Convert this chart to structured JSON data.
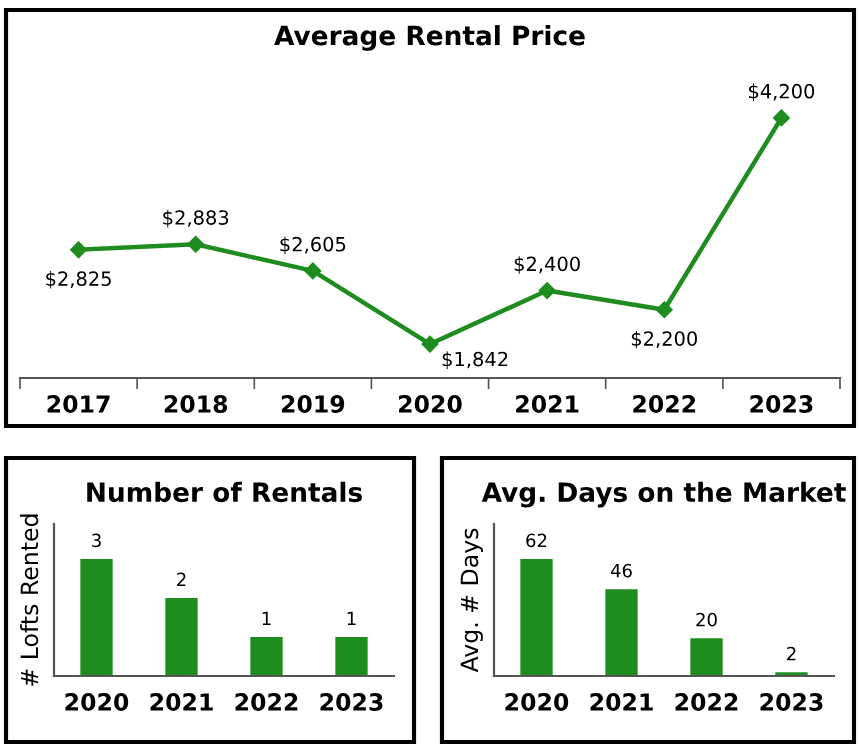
{
  "chart_data": [
    {
      "type": "line",
      "title": "Average Rental Price",
      "categories": [
        "2017",
        "2018",
        "2019",
        "2020",
        "2021",
        "2022",
        "2023"
      ],
      "series": [
        {
          "color": "#1e8c1e",
          "values": [
            2825,
            2883,
            2605,
            1842,
            2400,
            2200,
            4200
          ],
          "value_labels": [
            "$2,825",
            "$2,883",
            "$2,605",
            "$1,842",
            "$2,400",
            "$2,200",
            "$4,200"
          ]
        }
      ],
      "marker": "diamond",
      "line_style": "solid",
      "tick_labels": "x"
    },
    {
      "type": "bar",
      "title": "Number of Rentals",
      "ylabel": "# Lofts Rented",
      "categories": [
        "2020",
        "2021",
        "2022",
        "2023"
      ],
      "series": [
        {
          "color": "#1e8c1e",
          "values": [
            3,
            2,
            1,
            1
          ]
        }
      ],
      "data_labels": true,
      "tick_labels": "x"
    },
    {
      "type": "bar",
      "title": "Avg. Days on the Market",
      "ylabel": "Avg. # Days",
      "categories": [
        "2020",
        "2021",
        "2022",
        "2023"
      ],
      "series": [
        {
          "color": "#1e8c1e",
          "values": [
            62,
            46,
            20,
            2
          ]
        }
      ],
      "data_labels": true,
      "tick_labels": "x"
    }
  ]
}
